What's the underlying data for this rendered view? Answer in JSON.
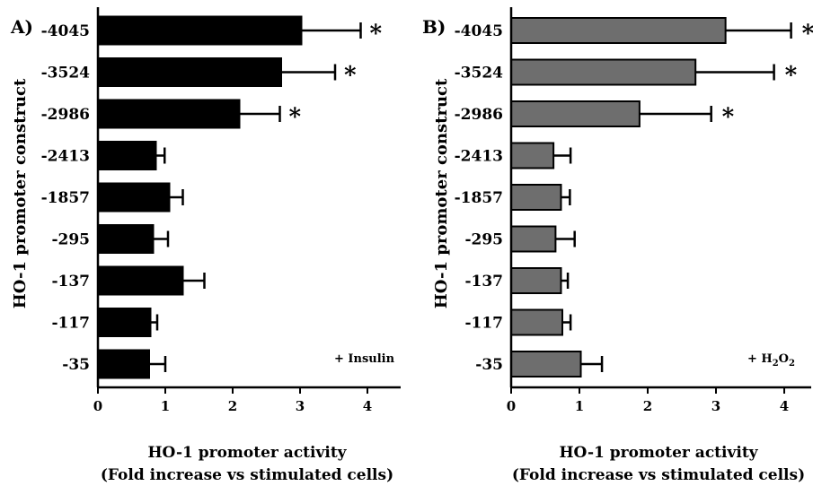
{
  "chart_data": [
    {
      "type": "bar",
      "orientation": "horizontal",
      "panel_label": "A)",
      "categories": [
        "-4045",
        "-3524",
        "-2986",
        "-2413",
        "-1857",
        "-295",
        "-137",
        "-117",
        "-35"
      ],
      "series": [
        {
          "values": [
            3.02,
            2.72,
            2.1,
            0.86,
            1.06,
            0.82,
            1.26,
            0.78,
            0.76
          ],
          "errors": [
            0.88,
            0.8,
            0.6,
            0.13,
            0.2,
            0.22,
            0.32,
            0.1,
            0.24
          ],
          "significant": [
            true,
            true,
            true,
            false,
            false,
            false,
            false,
            false,
            false
          ]
        }
      ],
      "bar_color": "#000000",
      "significance_marker": "*",
      "xlim": [
        0,
        4
      ],
      "xticks": [
        "0",
        "1",
        "2",
        "3",
        "4"
      ],
      "ylabel": "HO-1 promoter construct",
      "xlabel_line1": "HO-1 promoter activity",
      "xlabel_line2": "(Fold increase vs stimulated cells)",
      "annotation": "+ Insulin",
      "grid": false,
      "legend": "none"
    },
    {
      "type": "bar",
      "orientation": "horizontal",
      "panel_label": "B)",
      "categories": [
        "-4045",
        "-3524",
        "-2986",
        "-2413",
        "-1857",
        "-295",
        "-137",
        "-117",
        "-35"
      ],
      "series": [
        {
          "values": [
            3.14,
            2.7,
            1.88,
            0.62,
            0.73,
            0.65,
            0.73,
            0.75,
            1.02
          ],
          "errors": [
            0.96,
            1.15,
            1.05,
            0.25,
            0.13,
            0.28,
            0.1,
            0.12,
            0.31
          ],
          "significant": [
            true,
            true,
            true,
            false,
            false,
            false,
            false,
            false,
            false
          ]
        }
      ],
      "bar_color": "#6e6e6e",
      "significance_marker": "*",
      "xlim": [
        0,
        4
      ],
      "xticks": [
        "0",
        "1",
        "2",
        "3",
        "4"
      ],
      "ylabel": "HO-1 promoter construct",
      "xlabel_line1": "HO-1 promoter activity",
      "xlabel_line2": "(Fold increase vs stimulated cells)",
      "annotation_main": "+ H",
      "annotation_sub1": "2",
      "annotation_mid": "O",
      "annotation_sub2": "2",
      "grid": false,
      "legend": "none"
    }
  ]
}
